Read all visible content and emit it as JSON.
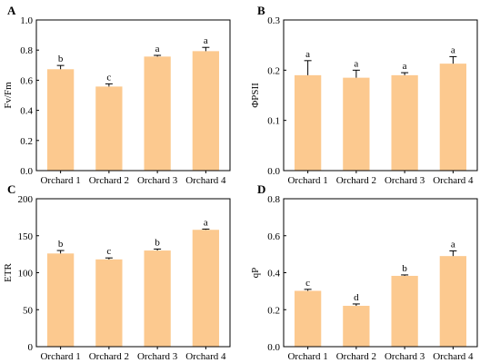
{
  "chart_data": [
    {
      "panel": "A",
      "type": "bar",
      "ylabel": "Fv/Fm",
      "ylim": [
        0,
        1.0
      ],
      "yticks": [
        "0.0",
        "0.2",
        "0.4",
        "0.6",
        "0.8",
        "1.0"
      ],
      "categories": [
        "Orchard 1",
        "Orchard 2",
        "Orchard 3",
        "Orchard 4"
      ],
      "values": [
        0.673,
        0.558,
        0.757,
        0.793
      ],
      "errors": [
        0.025,
        0.018,
        0.008,
        0.025
      ],
      "letters": [
        "b",
        "c",
        "a",
        "a"
      ],
      "bar_color": "#fcc98f"
    },
    {
      "panel": "B",
      "type": "bar",
      "ylabel": "ΦPSII",
      "ylim": [
        0,
        0.3
      ],
      "yticks": [
        "0.0",
        "0.1",
        "0.2",
        "0.3"
      ],
      "categories": [
        "Orchard 1",
        "Orchard 2",
        "Orchard 3",
        "Orchard 4"
      ],
      "values": [
        0.19,
        0.185,
        0.19,
        0.213
      ],
      "errors": [
        0.029,
        0.015,
        0.005,
        0.014
      ],
      "letters": [
        "a",
        "a",
        "a",
        "a"
      ],
      "bar_color": "#fcc98f"
    },
    {
      "panel": "C",
      "type": "bar",
      "ylabel": "ETR",
      "ylim": [
        0,
        200
      ],
      "yticks": [
        "0",
        "50",
        "100",
        "150",
        "200"
      ],
      "categories": [
        "Orchard 1",
        "Orchard 2",
        "Orchard 3",
        "Orchard 4"
      ],
      "values": [
        126,
        118,
        130,
        158
      ],
      "errors": [
        4,
        2,
        2,
        1
      ],
      "letters": [
        "b",
        "c",
        "b",
        "a"
      ],
      "bar_color": "#fcc98f"
    },
    {
      "panel": "D",
      "type": "bar",
      "ylabel": "qP",
      "ylim": [
        0,
        0.8
      ],
      "yticks": [
        "0.0",
        "0.2",
        "0.4",
        "0.6",
        "0.8"
      ],
      "categories": [
        "Orchard 1",
        "Orchard 2",
        "Orchard 3",
        "Orchard 4"
      ],
      "values": [
        0.302,
        0.221,
        0.383,
        0.49
      ],
      "errors": [
        0.008,
        0.01,
        0.005,
        0.028
      ],
      "letters": [
        "c",
        "d",
        "b",
        "a"
      ],
      "bar_color": "#fcc98f"
    }
  ]
}
